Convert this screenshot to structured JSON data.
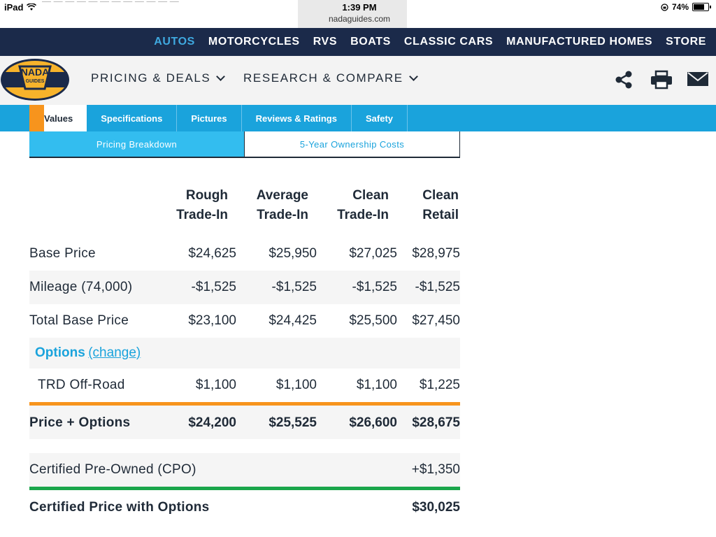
{
  "status_bar": {
    "device": "iPad",
    "time": "1:39 PM",
    "domain": "nadaguides.com",
    "battery": "74%",
    "battery_level": 0.74
  },
  "top_nav": {
    "items": [
      "AUTOS",
      "MOTORCYCLES",
      "RVS",
      "BOATS",
      "CLASSIC CARS",
      "MANUFACTURED HOMES",
      "STORE"
    ],
    "active": "AUTOS"
  },
  "header": {
    "logo_top": "NADA",
    "logo_bottom": "GUIDES",
    "menus": [
      {
        "label": "PRICING & DEALS"
      },
      {
        "label": "RESEARCH & COMPARE"
      }
    ],
    "icons": [
      "share-icon",
      "print-icon",
      "email-icon"
    ]
  },
  "tabs": [
    "Values",
    "Specifications",
    "Pictures",
    "Reviews & Ratings",
    "Safety"
  ],
  "sub_tabs": [
    "Pricing Breakdown",
    "5-Year Ownership Costs"
  ],
  "table": {
    "columns": [
      [
        "Rough",
        "Trade-In"
      ],
      [
        "Average",
        "Trade-In"
      ],
      [
        "Clean",
        "Trade-In"
      ],
      [
        "Clean",
        "Retail"
      ]
    ],
    "rows": [
      {
        "label": "Base Price",
        "values": [
          "$24,625",
          "$25,950",
          "$27,025",
          "$28,975"
        ]
      },
      {
        "label": "Mileage (74,000)",
        "values": [
          "-$1,525",
          "-$1,525",
          "-$1,525",
          "-$1,525"
        ]
      },
      {
        "label": "Total Base Price",
        "values": [
          "$23,100",
          "$24,425",
          "$25,500",
          "$27,450"
        ]
      }
    ],
    "options": {
      "title": "Options",
      "change_link": "(change)",
      "items": [
        {
          "label": "TRD Off-Road",
          "values": [
            "$1,100",
            "$1,100",
            "$1,100",
            "$1,225"
          ]
        }
      ]
    },
    "price_plus_options": {
      "label": "Price + Options",
      "values": [
        "$24,200",
        "$25,525",
        "$26,600",
        "$28,675"
      ]
    },
    "cpo": {
      "label": "Certified Pre-Owned (CPO)",
      "value": "+$1,350"
    },
    "certified_total": {
      "label": "Certified Price with Options",
      "value": "$30,025"
    }
  },
  "colors": {
    "navy": "#1b2a4a",
    "blue": "#1aa3dc",
    "light_blue": "#33bdef",
    "orange": "#f7941d",
    "green": "#1aa64b",
    "text": "#1f2a37"
  }
}
